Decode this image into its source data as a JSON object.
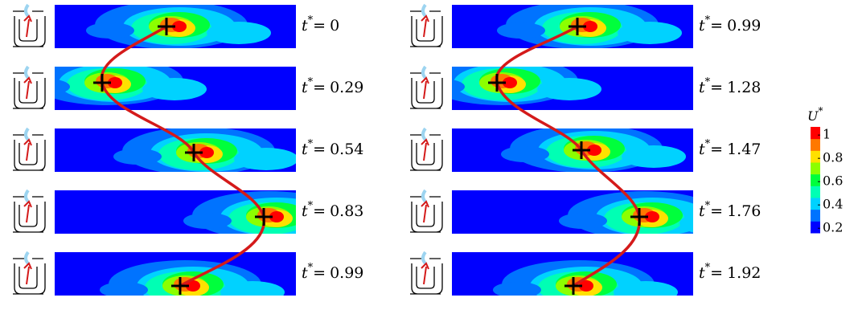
{
  "columns": [
    {
      "times": [
        0,
        0.29,
        0.54,
        0.83,
        0.99
      ]
    },
    {
      "times": [
        0.99,
        1.28,
        1.47,
        1.76,
        1.92
      ]
    }
  ],
  "time_symbol": "t",
  "time_superscript": "*",
  "equals": "=",
  "colorbar": {
    "title": "U",
    "title_superscript": "*",
    "ticks": [
      0.2,
      0.4,
      0.6,
      0.8,
      1
    ],
    "lim": [
      0.16,
      1.07
    ],
    "colors": [
      "#0000ff",
      "#0073ff",
      "#00d2ff",
      "#00ffb4",
      "#00ff3c",
      "#8cff00",
      "#ffe100",
      "#ff7800",
      "#ff0000"
    ]
  }
}
